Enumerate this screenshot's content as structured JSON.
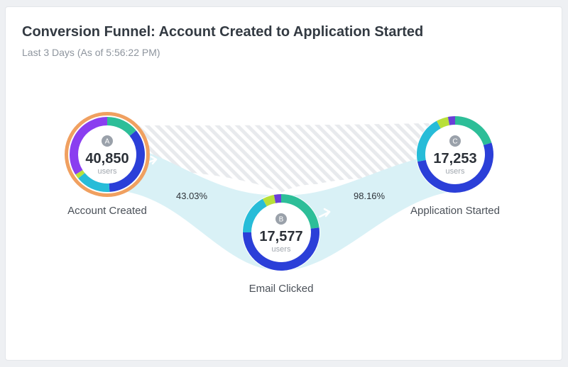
{
  "header": {
    "title": "Conversion Funnel: Account Created to Application Started",
    "subtitle": "Last 3 Days (As of 5:56:22 PM)"
  },
  "colors": {
    "purple": "#8a3ef0",
    "teal": "#2dbe98",
    "blue": "#2b3fd8",
    "cyan": "#27bcd8",
    "lime": "#b8e03a",
    "violet": "#6a3fd8",
    "orange_ring": "#f0a060",
    "badge": "#9aa1aa",
    "flow": "#d9f1f6",
    "dropoff_stripe": "#e4e6ea"
  },
  "steps": [
    {
      "letter": "A",
      "count": "40,850",
      "unit": "users",
      "label": "Account Created",
      "selected": true,
      "segments": [
        {
          "color": "teal",
          "fraction": 0.14
        },
        {
          "color": "blue",
          "fraction": 0.35
        },
        {
          "color": "cyan",
          "fraction": 0.15
        },
        {
          "color": "lime",
          "fraction": 0.02
        },
        {
          "color": "purple",
          "fraction": 0.34
        }
      ]
    },
    {
      "letter": "B",
      "count": "17,577",
      "unit": "users",
      "label": "Email Clicked",
      "selected": false,
      "segments": [
        {
          "color": "teal",
          "fraction": 0.23
        },
        {
          "color": "blue",
          "fraction": 0.52
        },
        {
          "color": "cyan",
          "fraction": 0.17
        },
        {
          "color": "lime",
          "fraction": 0.05
        },
        {
          "color": "violet",
          "fraction": 0.03
        }
      ]
    },
    {
      "letter": "C",
      "count": "17,253",
      "unit": "users",
      "label": "Application Started",
      "selected": false,
      "segments": [
        {
          "color": "teal",
          "fraction": 0.2
        },
        {
          "color": "blue",
          "fraction": 0.52
        },
        {
          "color": "cyan",
          "fraction": 0.2
        },
        {
          "color": "lime",
          "fraction": 0.05
        },
        {
          "color": "violet",
          "fraction": 0.03
        }
      ]
    }
  ],
  "conversions": [
    {
      "from": "A",
      "to": "B",
      "rate": "43.03%"
    },
    {
      "from": "B",
      "to": "C",
      "rate": "98.16%"
    }
  ]
}
